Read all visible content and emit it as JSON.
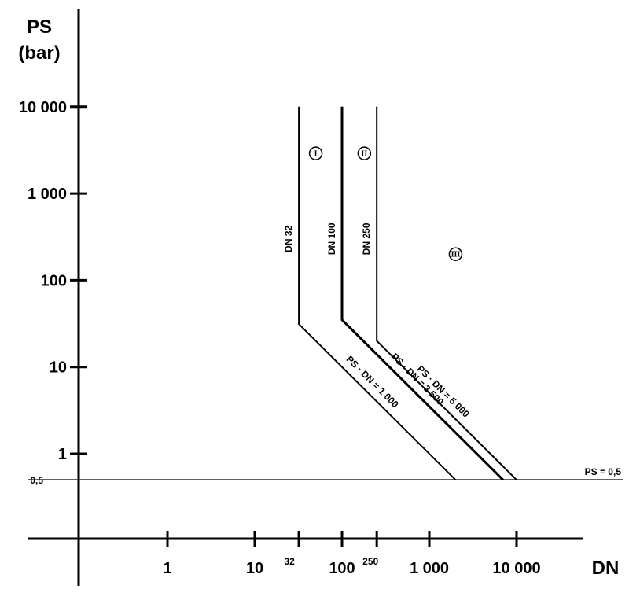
{
  "chart_data": {
    "type": "line",
    "title": "",
    "ylabel": "PS\n(bar)",
    "xlabel": "DN",
    "y_scale": "log",
    "x_scale": "log",
    "ylim": [
      0.1,
      10000
    ],
    "xlim": [
      0.1,
      100000
    ],
    "grid": false,
    "y_ticks": [
      {
        "value": 10000,
        "label": "10 000"
      },
      {
        "value": 1000,
        "label": "1 000"
      },
      {
        "value": 100,
        "label": "100"
      },
      {
        "value": 10,
        "label": "10"
      },
      {
        "value": 1,
        "label": "1"
      }
    ],
    "y_extra_label": {
      "value": 0.5,
      "label": "0,5"
    },
    "x_ticks": [
      {
        "value": 1,
        "label": "1",
        "small": false
      },
      {
        "value": 10,
        "label": "10",
        "small": false
      },
      {
        "value": 32,
        "label": "32",
        "small": true
      },
      {
        "value": 100,
        "label": "100",
        "small": false
      },
      {
        "value": 250,
        "label": "250",
        "small": true
      },
      {
        "value": 1000,
        "label": "1 000",
        "small": false
      },
      {
        "value": 10000,
        "label": "10 000",
        "small": false
      }
    ],
    "series": [
      {
        "name": "DN 32",
        "line_label": "PS · DN = 1 000",
        "bold": false,
        "points": [
          [
            32,
            10000
          ],
          [
            32,
            31.25
          ],
          [
            2000,
            0.5
          ]
        ]
      },
      {
        "name": "DN 100",
        "line_label": "PS · DN = 3 500",
        "bold": true,
        "points": [
          [
            100,
            10000
          ],
          [
            100,
            35
          ],
          [
            7000,
            0.5
          ]
        ]
      },
      {
        "name": "DN 250",
        "line_label": "PS · DN = 5 000",
        "bold": false,
        "points": [
          [
            250,
            10000
          ],
          [
            250,
            20
          ],
          [
            10000,
            0.5
          ]
        ]
      }
    ],
    "horizontal_line": {
      "y": 0.5,
      "label": "PS = 0,5"
    },
    "zones": [
      {
        "label": "I",
        "x": 50,
        "y": 2900
      },
      {
        "label": "II",
        "x": 180,
        "y": 2900
      },
      {
        "label": "III",
        "x": 2000,
        "y": 200
      }
    ]
  }
}
